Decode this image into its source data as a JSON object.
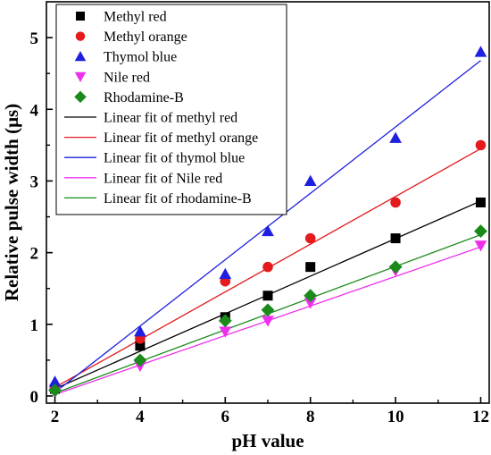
{
  "chart_data": {
    "type": "scatter",
    "xlabel": "pH value",
    "ylabel": "Relative pulse width (μs)",
    "xlim": [
      1.8,
      12.2
    ],
    "ylim": [
      -0.1,
      5.5
    ],
    "xticks": [
      2,
      4,
      6,
      8,
      10,
      12
    ],
    "yticks": [
      0,
      1,
      2,
      3,
      4,
      5
    ],
    "legend_position": "top-left",
    "grid": false,
    "series": [
      {
        "name": "Methyl red",
        "marker": "square",
        "color": "#000000",
        "x": [
          2,
          4,
          6,
          7,
          8,
          10,
          12
        ],
        "y": [
          0.1,
          0.7,
          1.1,
          1.4,
          1.8,
          2.2,
          2.7
        ]
      },
      {
        "name": "Methyl orange",
        "marker": "circle",
        "color": "#e41a1c",
        "x": [
          2,
          4,
          6,
          7,
          8,
          10,
          12
        ],
        "y": [
          0.1,
          0.8,
          1.6,
          1.8,
          2.2,
          2.7,
          3.5
        ]
      },
      {
        "name": "Thymol blue",
        "marker": "triangle-up",
        "color": "#1f1fe0",
        "x": [
          2,
          4,
          6,
          7,
          8,
          10,
          12
        ],
        "y": [
          0.2,
          0.9,
          1.7,
          2.3,
          3.0,
          3.6,
          4.8
        ]
      },
      {
        "name": "Nile red",
        "marker": "triangle-down",
        "color": "#ee30ee",
        "x": [
          2,
          4,
          6,
          7,
          8,
          10,
          12
        ],
        "y": [
          0.05,
          0.42,
          0.9,
          1.05,
          1.3,
          1.75,
          2.1
        ]
      },
      {
        "name": "Rhodamine-B",
        "marker": "diamond",
        "color": "#1a8a1a",
        "x": [
          2,
          4,
          6,
          7,
          8,
          10,
          12
        ],
        "y": [
          0.08,
          0.5,
          1.05,
          1.2,
          1.4,
          1.8,
          2.3
        ]
      }
    ],
    "fits": [
      {
        "name": "Linear fit of methyl red",
        "color": "#000000",
        "x": [
          2,
          12
        ],
        "y": [
          0.1,
          2.72
        ]
      },
      {
        "name": "Linear fit of methyl orange",
        "color": "#e41a1c",
        "x": [
          2,
          12
        ],
        "y": [
          0.12,
          3.45
        ]
      },
      {
        "name": "Linear fit of thymol blue",
        "color": "#1f1fe0",
        "x": [
          2,
          12
        ],
        "y": [
          0.05,
          4.68
        ]
      },
      {
        "name": "Linear fit of Nile red",
        "color": "#ee30ee",
        "x": [
          2,
          12
        ],
        "y": [
          0.02,
          2.08
        ]
      },
      {
        "name": "Linear fit of rhodamine-B",
        "color": "#1a8a1a",
        "x": [
          2,
          12
        ],
        "y": [
          0.04,
          2.25
        ]
      }
    ]
  }
}
